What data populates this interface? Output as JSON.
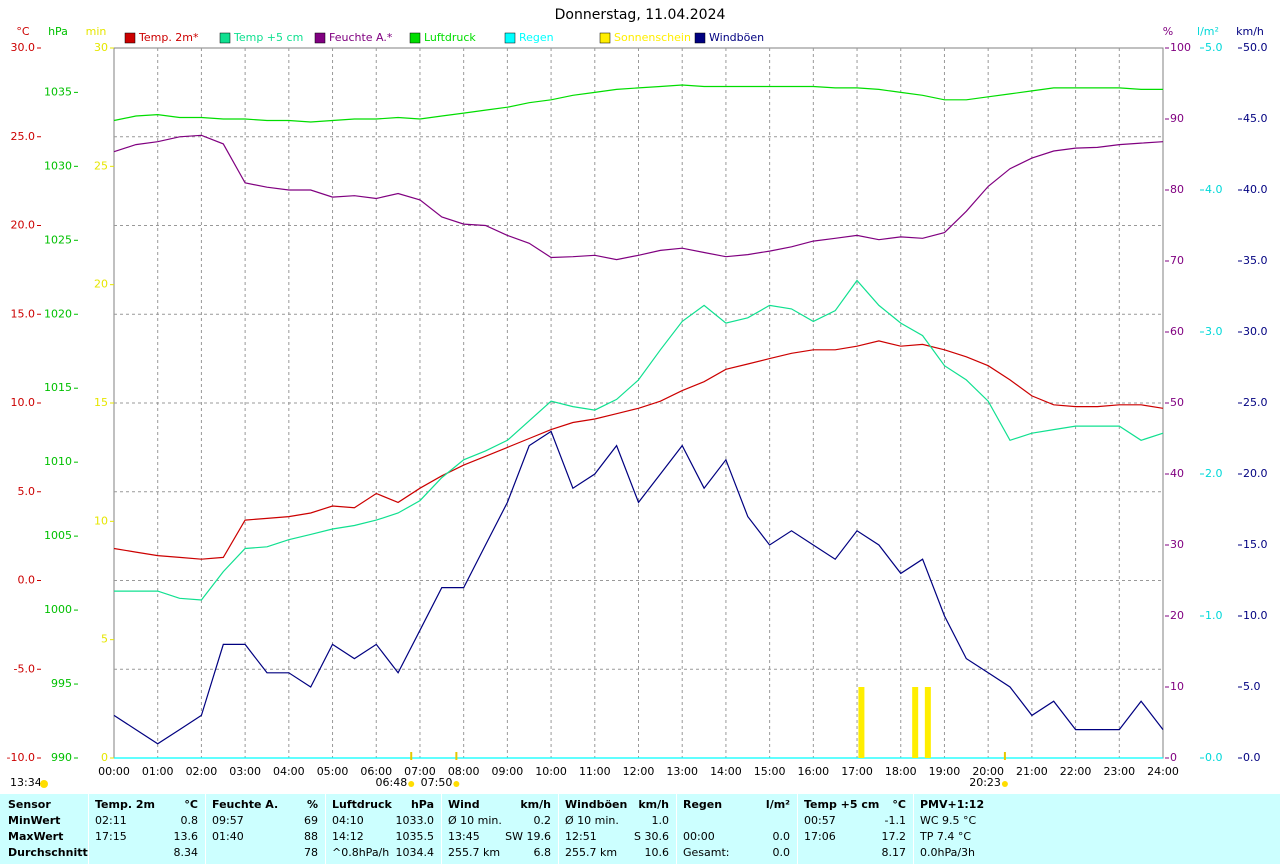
{
  "chart_data": {
    "type": "line",
    "title": "Donnerstag, 11.04.2024",
    "x": [
      0,
      0.5,
      1,
      1.5,
      2,
      2.5,
      3,
      3.5,
      4,
      4.5,
      5,
      5.5,
      6,
      6.5,
      7,
      7.5,
      8,
      8.5,
      9,
      9.5,
      10,
      10.5,
      11,
      11.5,
      12,
      12.5,
      13,
      13.5,
      14,
      14.5,
      15,
      15.5,
      16,
      16.5,
      17,
      17.5,
      18,
      18.5,
      19,
      19.5,
      20,
      20.5,
      21,
      21.5,
      22,
      22.5,
      23,
      23.5,
      24
    ],
    "xlim": [
      0,
      24
    ],
    "xticks": [
      {
        "value": 0,
        "label": "00:00"
      },
      {
        "value": 1,
        "label": "01:00"
      },
      {
        "value": 2,
        "label": "02:00"
      },
      {
        "value": 3,
        "label": "03:00"
      },
      {
        "value": 4,
        "label": "04:00"
      },
      {
        "value": 5,
        "label": "05:00"
      },
      {
        "value": 6,
        "label": "06:00"
      },
      {
        "value": 7,
        "label": "07:00"
      },
      {
        "value": 8,
        "label": "08:00"
      },
      {
        "value": 9,
        "label": "09:00"
      },
      {
        "value": 10,
        "label": "10:00"
      },
      {
        "value": 11,
        "label": "11:00"
      },
      {
        "value": 12,
        "label": "12:00"
      },
      {
        "value": 13,
        "label": "13:00"
      },
      {
        "value": 14,
        "label": "14:00"
      },
      {
        "value": 15,
        "label": "15:00"
      },
      {
        "value": 16,
        "label": "16:00"
      },
      {
        "value": 17,
        "label": "17:00"
      },
      {
        "value": 18,
        "label": "18:00"
      },
      {
        "value": 19,
        "label": "19:00"
      },
      {
        "value": 20,
        "label": "20:00"
      },
      {
        "value": 21,
        "label": "21:00"
      },
      {
        "value": 22,
        "label": "22:00"
      },
      {
        "value": 23,
        "label": "23:00"
      },
      {
        "value": 24,
        "label": "24:00"
      }
    ],
    "grid": true,
    "axes": [
      {
        "label": "°C",
        "side": "left",
        "color": "#cc0000",
        "lim": [
          -10,
          30
        ],
        "ticks": [
          {
            "value": -10,
            "label": "-10.0"
          },
          {
            "value": -5,
            "label": "-5.0"
          },
          {
            "value": 0,
            "label": "0.0"
          },
          {
            "value": 5,
            "label": "5.0"
          },
          {
            "value": 10,
            "label": "10.0"
          },
          {
            "value": 15,
            "label": "15.0"
          },
          {
            "value": 20,
            "label": "20.0"
          },
          {
            "value": 25,
            "label": "25.0"
          },
          {
            "value": 30,
            "label": "30.0"
          }
        ]
      },
      {
        "label": "hPa",
        "side": "left",
        "color": "#00c000",
        "lim": [
          990,
          1038
        ],
        "ticks": [
          990,
          995,
          1000,
          1005,
          1010,
          1015,
          1020,
          1025,
          1030,
          1035
        ]
      },
      {
        "label": "min",
        "side": "left",
        "color": "#e6e600",
        "lim": [
          0,
          30
        ],
        "ticks": [
          0,
          5,
          10,
          15,
          20,
          25,
          30
        ]
      },
      {
        "label": "%",
        "side": "right",
        "color": "#800080",
        "lim": [
          0,
          100
        ],
        "ticks": [
          0,
          10,
          20,
          30,
          40,
          50,
          60,
          70,
          80,
          90,
          100
        ]
      },
      {
        "label": "l/m²",
        "side": "right",
        "color": "#00d8d8",
        "lim": [
          0,
          5
        ],
        "ticks": [
          {
            "value": 0,
            "label": "0.0"
          },
          {
            "value": 1,
            "label": "1.0"
          },
          {
            "value": 2,
            "label": "2.0"
          },
          {
            "value": 3,
            "label": "3.0"
          },
          {
            "value": 4,
            "label": "4.0"
          },
          {
            "value": 5,
            "label": "5.0"
          }
        ]
      },
      {
        "label": "km/h",
        "side": "right",
        "color": "#000080",
        "lim": [
          0,
          50
        ],
        "ticks": [
          {
            "value": 0,
            "label": "0.0"
          },
          {
            "value": 5,
            "label": "5.0"
          },
          {
            "value": 10,
            "label": "10.0"
          },
          {
            "value": 15,
            "label": "15.0"
          },
          {
            "value": 20,
            "label": "20.0"
          },
          {
            "value": 25,
            "label": "25.0"
          },
          {
            "value": 30,
            "label": "30.0"
          },
          {
            "value": 35,
            "label": "35.0"
          },
          {
            "value": 40,
            "label": "40.0"
          },
          {
            "value": 45,
            "label": "45.0"
          },
          {
            "value": 50,
            "label": "50.0"
          }
        ]
      }
    ],
    "series": [
      {
        "name": "Temp. 2m*",
        "color": "#cc0000",
        "axis": 0,
        "values": [
          1.8,
          1.6,
          1.4,
          1.3,
          1.2,
          1.3,
          3.4,
          3.5,
          3.6,
          3.8,
          4.2,
          4.1,
          4.9,
          4.4,
          5.2,
          5.9,
          6.5,
          7.0,
          7.5,
          8.0,
          8.5,
          8.9,
          9.1,
          9.4,
          9.7,
          10.1,
          10.7,
          11.2,
          11.9,
          12.2,
          12.5,
          12.8,
          13.0,
          13.0,
          13.2,
          13.5,
          13.2,
          13.3,
          13.0,
          12.6,
          12.1,
          11.3,
          10.4,
          9.9,
          9.8,
          9.8,
          9.9,
          9.9,
          9.7
        ]
      },
      {
        "name": "Temp +5 cm",
        "color": "#10e090",
        "axis": 0,
        "values": [
          -0.6,
          -0.6,
          -0.6,
          -1.0,
          -1.1,
          0.5,
          1.8,
          1.9,
          2.3,
          2.6,
          2.9,
          3.1,
          3.4,
          3.8,
          4.5,
          5.8,
          6.8,
          7.3,
          7.9,
          9.0,
          10.1,
          9.8,
          9.6,
          10.2,
          11.3,
          13.0,
          14.6,
          15.5,
          14.5,
          14.8,
          15.5,
          15.3,
          14.6,
          15.2,
          16.9,
          15.5,
          14.5,
          13.8,
          12.1,
          11.3,
          10.1,
          7.9,
          8.3,
          8.5,
          8.7,
          8.7,
          8.7,
          7.9,
          8.3
        ]
      },
      {
        "name": "Feuchte A.*",
        "color": "#800080",
        "axis": 3,
        "values": [
          85.4,
          86.4,
          86.8,
          87.5,
          87.7,
          86.5,
          81.0,
          80.4,
          80.0,
          80.0,
          79.0,
          79.2,
          78.8,
          79.5,
          78.6,
          76.2,
          75.2,
          75.0,
          73.6,
          72.5,
          70.5,
          70.6,
          70.8,
          70.2,
          70.8,
          71.5,
          71.8,
          71.2,
          70.6,
          70.9,
          71.4,
          72.0,
          72.8,
          73.2,
          73.6,
          73.0,
          73.4,
          73.2,
          74.0,
          77.0,
          80.5,
          83.0,
          84.5,
          85.5,
          85.9,
          86.0,
          86.4,
          86.6,
          86.8
        ]
      },
      {
        "name": "Luftdruck",
        "color": "#00dd00",
        "axis": 1,
        "values": [
          1033.1,
          1033.4,
          1033.5,
          1033.3,
          1033.3,
          1033.2,
          1033.2,
          1033.1,
          1033.1,
          1033.0,
          1033.1,
          1033.2,
          1033.2,
          1033.3,
          1033.2,
          1033.4,
          1033.6,
          1033.8,
          1034.0,
          1034.3,
          1034.5,
          1034.8,
          1035.0,
          1035.2,
          1035.3,
          1035.4,
          1035.5,
          1035.4,
          1035.4,
          1035.4,
          1035.4,
          1035.4,
          1035.4,
          1035.3,
          1035.3,
          1035.2,
          1035.0,
          1034.8,
          1034.5,
          1034.5,
          1034.7,
          1034.9,
          1035.1,
          1035.3,
          1035.3,
          1035.3,
          1035.3,
          1035.2,
          1035.2
        ]
      },
      {
        "name": "Regen",
        "color": "#00ffff",
        "axis": 4,
        "values": [
          0,
          0,
          0,
          0,
          0,
          0,
          0,
          0,
          0,
          0,
          0,
          0,
          0,
          0,
          0,
          0,
          0,
          0,
          0,
          0,
          0,
          0,
          0,
          0,
          0,
          0,
          0,
          0,
          0,
          0,
          0,
          0,
          0,
          0,
          0,
          0,
          0,
          0,
          0,
          0,
          0,
          0,
          0,
          0,
          0,
          0,
          0,
          0,
          0
        ]
      },
      {
        "name": "Sonnenschein",
        "color": "#ffee00",
        "axis": 2,
        "style": "bar",
        "x": [
          17.1,
          18.33,
          18.62
        ],
        "values": [
          3,
          3,
          3
        ]
      },
      {
        "name": "Windböen",
        "color": "#000080",
        "axis": 5,
        "values": [
          3,
          2,
          1,
          2,
          3,
          8,
          8,
          6,
          6,
          5,
          8,
          7,
          8,
          6,
          9,
          12,
          12,
          15,
          18,
          22,
          23,
          19,
          20,
          22,
          18,
          20,
          22,
          19,
          21,
          17,
          15,
          16,
          15,
          14,
          16,
          15,
          13,
          14,
          10,
          7,
          6,
          5,
          3,
          4,
          2,
          2,
          2,
          4,
          2
        ]
      }
    ],
    "update_time": "13:34",
    "annotations": [
      {
        "text": "06:48",
        "x": 6.8
      },
      {
        "text": "07:50",
        "x": 7.833
      },
      {
        "text": "20:23",
        "x": 20.383
      }
    ]
  },
  "table": {
    "first_header": "Sensor",
    "header": [
      {
        "name": "Temp. 2m",
        "unit": "°C"
      },
      {
        "name": "Feuchte A.",
        "unit": "%"
      },
      {
        "name": "Luftdruck",
        "unit": "hPa"
      },
      {
        "name": "Wind",
        "unit": "km/h"
      },
      {
        "name": "Windböen",
        "unit": "km/h"
      },
      {
        "name": "Regen",
        "unit": "l/m²"
      },
      {
        "name": "Temp +5 cm",
        "unit": "°C"
      },
      {
        "name": "PMV+1:12",
        "unit": null
      }
    ],
    "rows": [
      {
        "label": "MinWert",
        "cells": [
          [
            "02:11",
            "0.8"
          ],
          [
            "09:57",
            "69"
          ],
          [
            "04:10",
            "1033.0"
          ],
          [
            "Ø 10 min.",
            "0.2"
          ],
          [
            "Ø 10 min.",
            "1.0"
          ],
          [
            null,
            null
          ],
          [
            "00:57",
            "-1.1"
          ],
          [
            "WC 9.5 °C",
            null
          ]
        ]
      },
      {
        "label": "MaxWert",
        "cells": [
          [
            "17:15",
            "13.6"
          ],
          [
            "01:40",
            "88"
          ],
          [
            "14:12",
            "1035.5"
          ],
          [
            "13:45",
            "SW 19.6"
          ],
          [
            "12:51",
            "S 30.6"
          ],
          [
            "00:00",
            "0.0"
          ],
          [
            "17:06",
            "17.2"
          ],
          [
            "TP 7.4 °C",
            null
          ]
        ]
      },
      {
        "label": "Durchschnitt",
        "cells": [
          [
            null,
            "8.34"
          ],
          [
            null,
            "78"
          ],
          [
            "^0.8hPa/h",
            "1034.4"
          ],
          [
            "255.7 km",
            "6.8"
          ],
          [
            "255.7 km",
            "10.6"
          ],
          [
            "Gesamt:",
            "0.0"
          ],
          [
            null,
            "8.17"
          ],
          [
            "0.0hPa/3h",
            null
          ]
        ]
      }
    ]
  }
}
